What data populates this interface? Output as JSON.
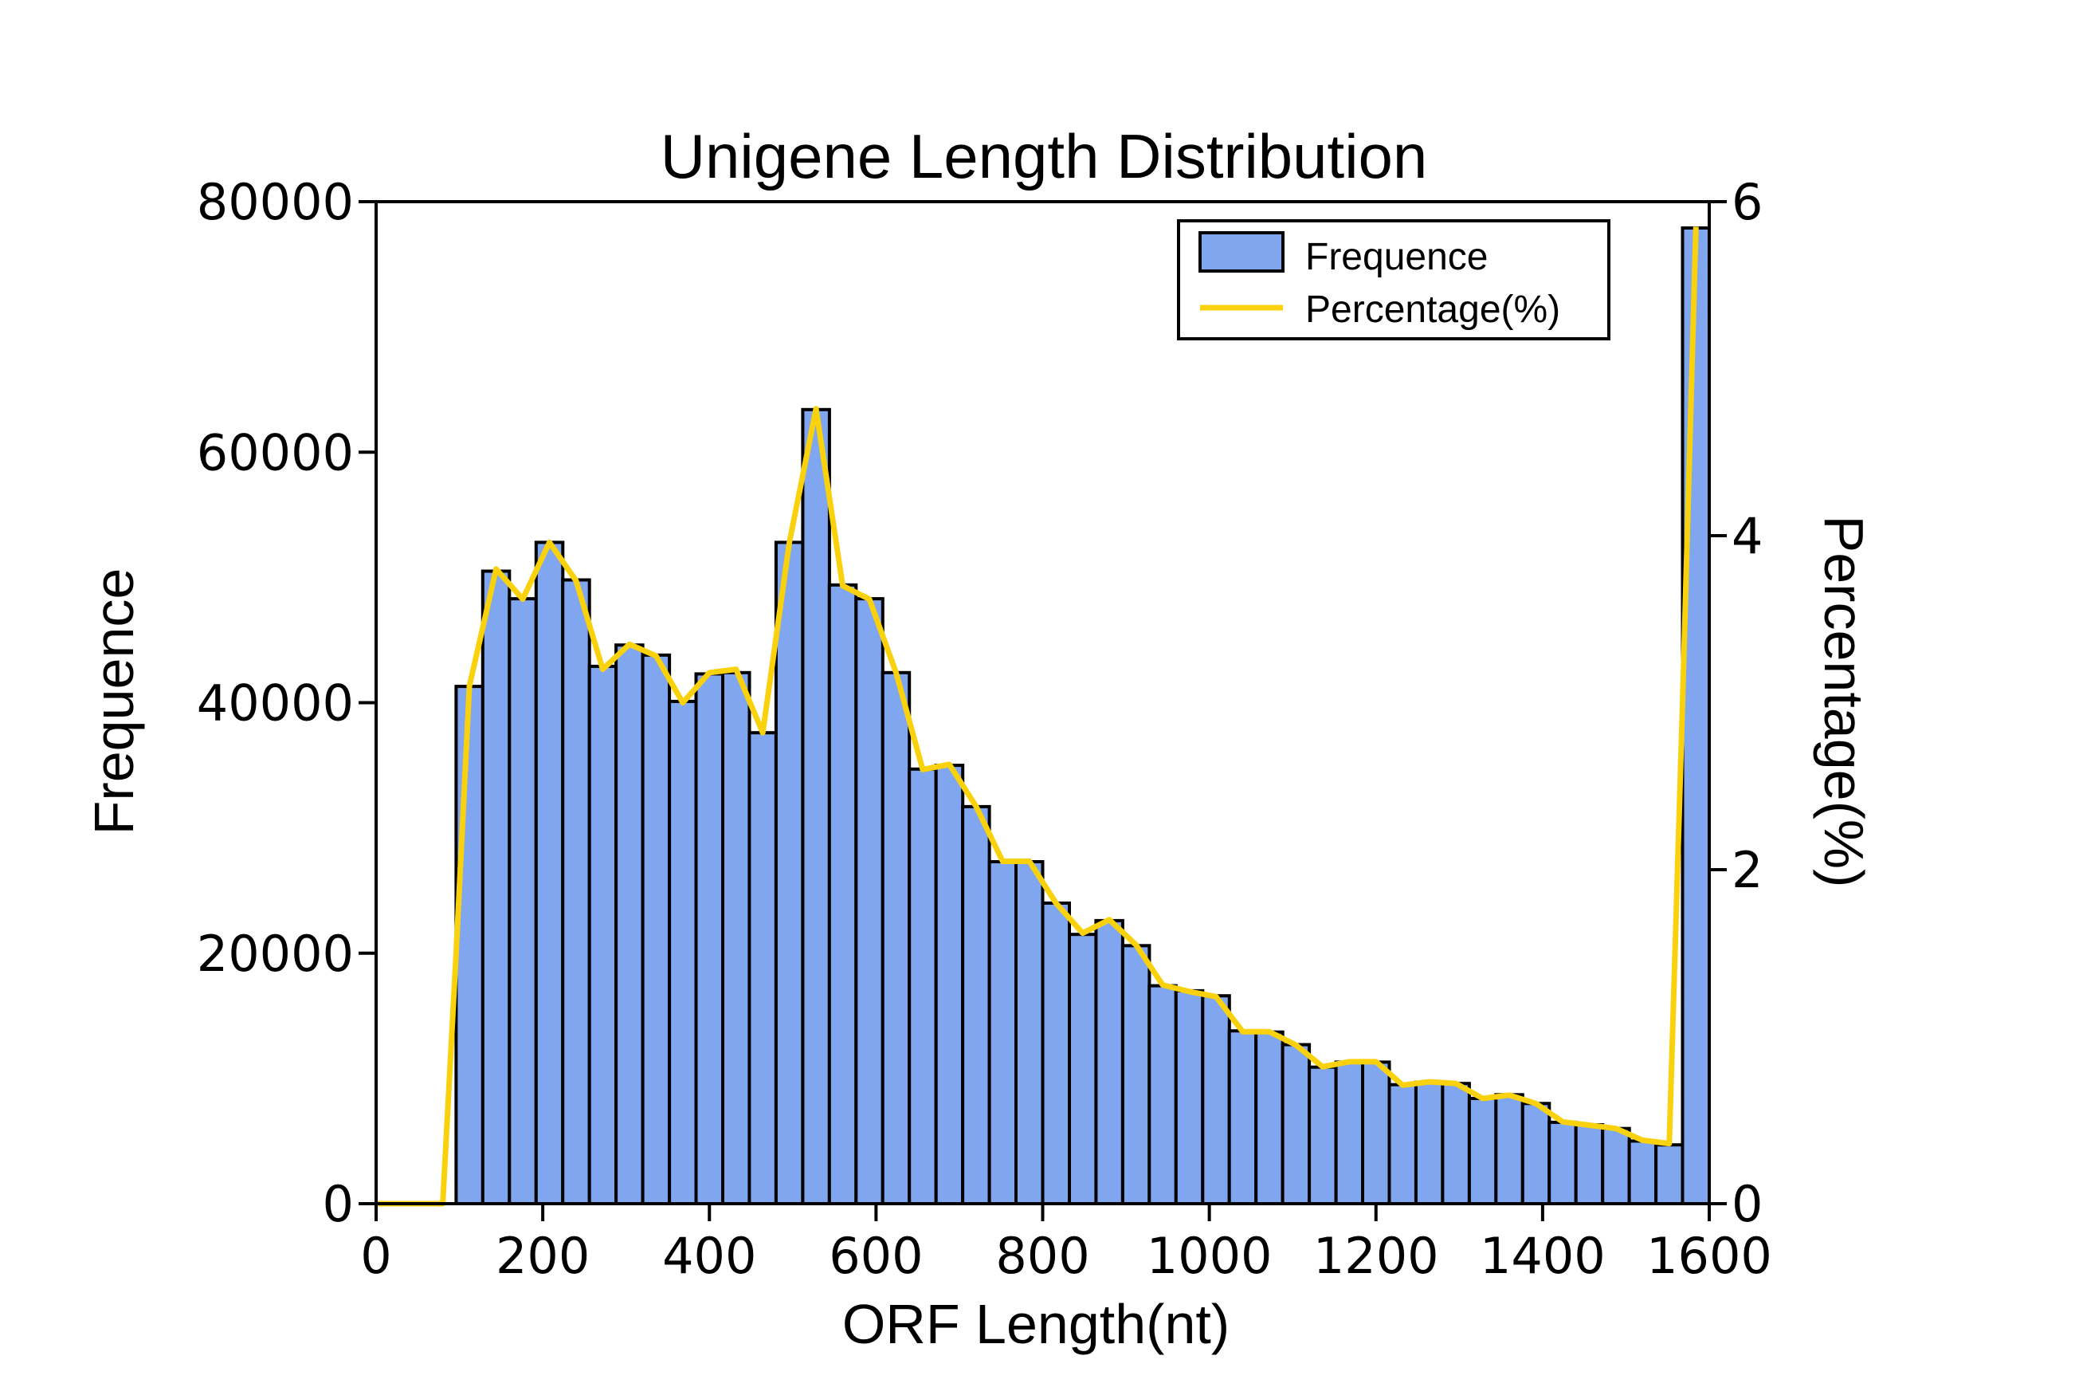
{
  "chart_data": {
    "type": "bar",
    "title": "Unigene Length Distribution",
    "xlabel": "ORF Length(nt)",
    "ylabel": "Frequence",
    "y2label": "Percentage(%)",
    "xlim": [
      0,
      1600
    ],
    "ylim": [
      0,
      80000
    ],
    "y2lim": [
      0,
      6
    ],
    "xticks": [
      "0",
      "200",
      "400",
      "600",
      "800",
      "1000",
      "1200",
      "1400",
      "1600"
    ],
    "yticks": [
      "0",
      "20000",
      "40000",
      "60000",
      "80000"
    ],
    "y2ticks": [
      "0",
      "2",
      "4",
      "6"
    ],
    "legend": {
      "position": "top-right",
      "bar_label": "Frequence",
      "line_label": "Percentage(%)"
    },
    "colors": {
      "bar_fill": "#7fa6ef",
      "bar_edge": "#000000",
      "line": "#f9d20d"
    },
    "bin_width": 32,
    "x": [
      0,
      32,
      64,
      96,
      128,
      160,
      192,
      224,
      256,
      288,
      320,
      352,
      384,
      416,
      448,
      480,
      512,
      544,
      576,
      608,
      640,
      672,
      704,
      736,
      768,
      800,
      832,
      864,
      896,
      928,
      960,
      992,
      1024,
      1056,
      1088,
      1120,
      1152,
      1184,
      1216,
      1248,
      1280,
      1312,
      1344,
      1376,
      1408,
      1440,
      1472,
      1504,
      1536,
      1568
    ],
    "series": [
      {
        "name": "Frequence",
        "kind": "bar",
        "values": [
          0,
          0,
          0,
          41300,
          50500,
          48300,
          52800,
          49800,
          42900,
          44600,
          43800,
          40100,
          42300,
          42400,
          37600,
          52800,
          63400,
          49400,
          48300,
          42400,
          34700,
          35000,
          31700,
          27300,
          27300,
          24000,
          21500,
          22600,
          20600,
          17400,
          17000,
          16600,
          13800,
          13700,
          12700,
          10900,
          11300,
          11300,
          9500,
          9700,
          9600,
          8400,
          8700,
          8000,
          6500,
          6300,
          6000,
          5000,
          4700,
          77900
        ]
      },
      {
        "name": "Percentage(%)",
        "kind": "line",
        "x": [
          0,
          80,
          96,
          112,
          144,
          176,
          208,
          240,
          272,
          304,
          336,
          368,
          400,
          432,
          464,
          496,
          528,
          560,
          592,
          624,
          656,
          688,
          720,
          752,
          784,
          816,
          848,
          880,
          912,
          944,
          976,
          1008,
          1040,
          1072,
          1104,
          1136,
          1168,
          1200,
          1232,
          1264,
          1296,
          1328,
          1360,
          1392,
          1424,
          1456,
          1488,
          1520,
          1552,
          1568,
          1584
        ],
        "values": [
          0,
          0,
          1.5,
          3.1,
          3.8,
          3.62,
          3.96,
          3.73,
          3.2,
          3.35,
          3.28,
          3.0,
          3.18,
          3.2,
          2.82,
          3.96,
          4.76,
          3.7,
          3.62,
          3.18,
          2.6,
          2.63,
          2.38,
          2.05,
          2.05,
          1.8,
          1.62,
          1.7,
          1.55,
          1.31,
          1.27,
          1.24,
          1.03,
          1.03,
          0.95,
          0.82,
          0.85,
          0.85,
          0.71,
          0.73,
          0.72,
          0.63,
          0.65,
          0.6,
          0.49,
          0.47,
          0.45,
          0.38,
          0.36,
          3.0,
          5.85
        ]
      }
    ]
  }
}
